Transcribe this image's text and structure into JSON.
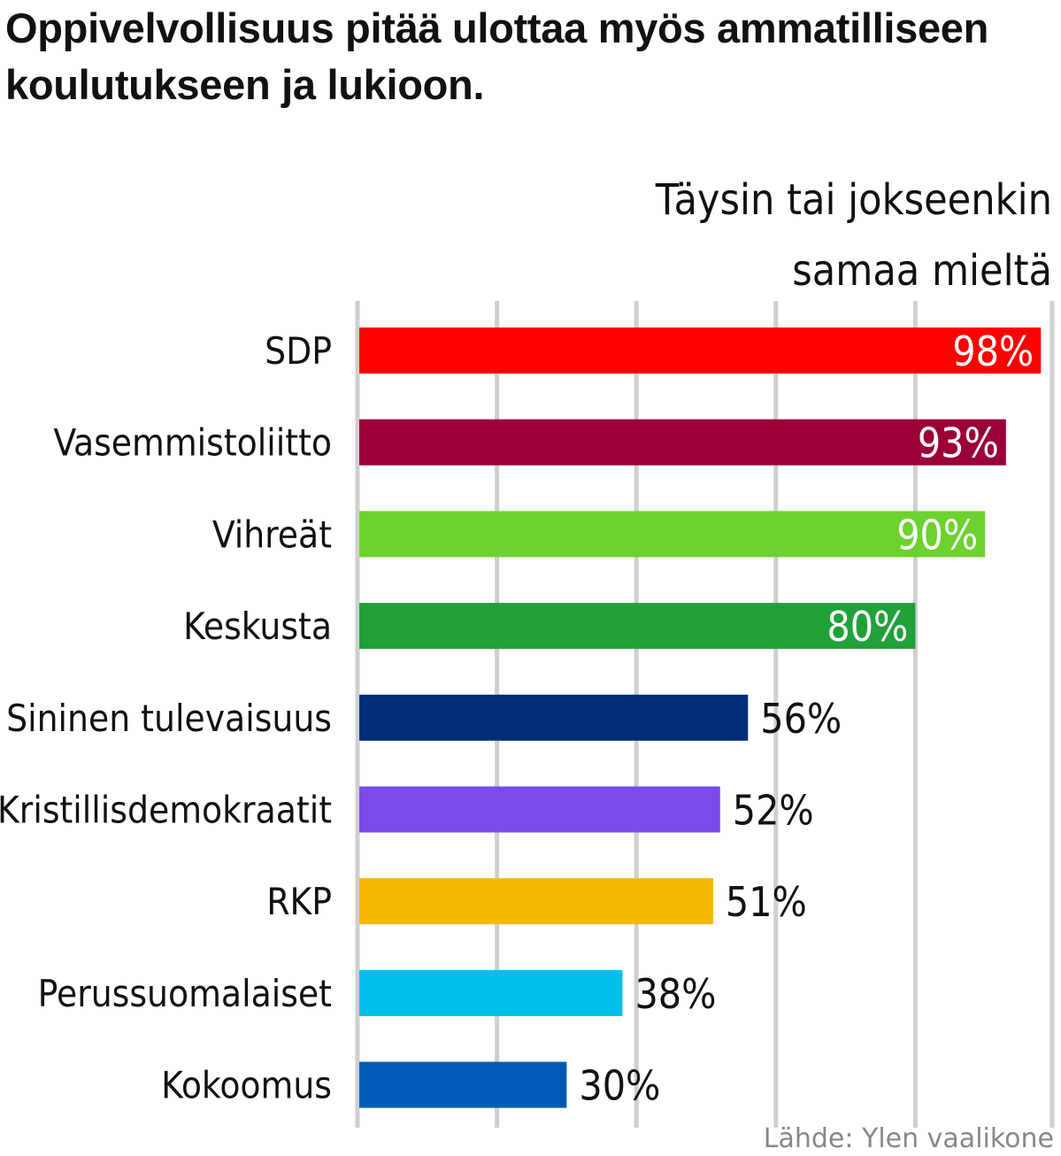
{
  "chart_data": {
    "type": "bar",
    "orientation": "horizontal",
    "title": "Oppivelvollisuus pitää ulottaa myös ammatilliseen koulutukseen ja lukioon.",
    "subtitle": "Täysin tai jokseenkin samaa mieltä",
    "source": "Lähde: Ylen vaalikone",
    "categories": [
      "SDP",
      "Vasemmistoliitto",
      "Vihreät",
      "Keskusta",
      "Sininen tulevaisuus",
      "Kristillisdemokraatit",
      "RKP",
      "Perussuomalaiset",
      "Kokoomus"
    ],
    "values": [
      98,
      93,
      90,
      80,
      56,
      52,
      51,
      38,
      30
    ],
    "value_labels": [
      "98%",
      "93%",
      "90%",
      "80%",
      "56%",
      "52%",
      "51%",
      "38%",
      "30%"
    ],
    "colors": [
      "#ff0000",
      "#9b0039",
      "#6dd12e",
      "#21a03a",
      "#002d7a",
      "#7b4ae8",
      "#f7b800",
      "#00c1ec",
      "#005bb8"
    ],
    "xlim": [
      0,
      100
    ],
    "grid": true,
    "legend": "none"
  }
}
